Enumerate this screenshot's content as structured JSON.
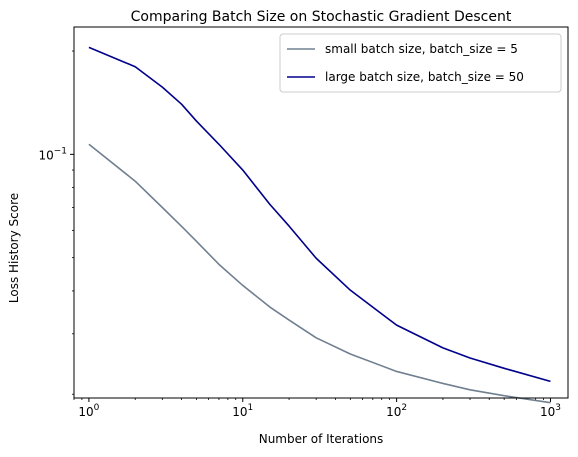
{
  "chart_data": {
    "type": "line",
    "title": "Comparing Batch Size on Stochastic Gradient Descent",
    "xlabel": "Number of Iterations",
    "ylabel": "Loss History Score",
    "x_scale": "log",
    "y_scale": "log",
    "xlim": [
      0.8,
      1300
    ],
    "ylim": [
      0.0195,
      0.235
    ],
    "x_ticks": [
      {
        "value": 1,
        "base": "10",
        "exp": "0"
      },
      {
        "value": 10,
        "base": "10",
        "exp": "1"
      },
      {
        "value": 100,
        "base": "10",
        "exp": "2"
      },
      {
        "value": 1000,
        "base": "10",
        "exp": "3"
      }
    ],
    "y_ticks": [
      {
        "value": 0.1,
        "base": "10",
        "exp": "−1"
      }
    ],
    "y_minor_ticks": [
      0.02,
      0.03,
      0.04,
      0.05,
      0.06,
      0.07,
      0.08,
      0.09,
      0.2
    ],
    "grid": false,
    "legend_position": "top-right",
    "series": [
      {
        "name": "small batch size, batch_size = 5",
        "color": "#708090",
        "x": [
          1,
          2,
          3,
          4,
          5,
          7,
          10,
          15,
          20,
          30,
          50,
          100,
          200,
          300,
          500,
          1000
        ],
        "y": [
          0.107,
          0.0835,
          0.07,
          0.0617,
          0.0558,
          0.0478,
          0.0415,
          0.0359,
          0.0329,
          0.0292,
          0.0262,
          0.0233,
          0.0215,
          0.0206,
          0.0198,
          0.0189
        ]
      },
      {
        "name": "large batch size, batch_size = 50",
        "color": "#00008b",
        "x": [
          1,
          2,
          3,
          4,
          5,
          7,
          10,
          15,
          20,
          30,
          50,
          100,
          200,
          300,
          500,
          1000
        ],
        "y": [
          0.205,
          0.18,
          0.157,
          0.14,
          0.125,
          0.107,
          0.09,
          0.0715,
          0.0618,
          0.0498,
          0.0402,
          0.0318,
          0.0273,
          0.0255,
          0.0238,
          0.0218
        ]
      }
    ]
  }
}
